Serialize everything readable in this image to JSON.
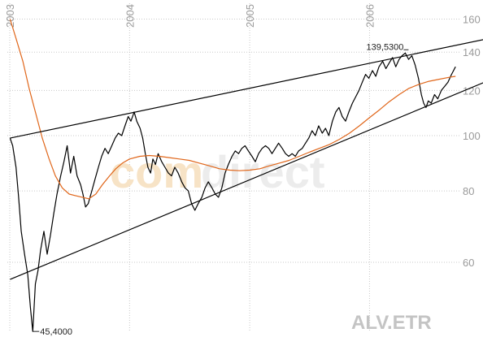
{
  "watermark": {
    "part1": "com",
    "part2": "direct"
  },
  "chart_data": {
    "type": "line",
    "symbol": "ALV.ETR",
    "y_scale": "log",
    "ylim": [
      45,
      160
    ],
    "yticks": [
      60,
      80,
      100,
      120,
      140,
      160
    ],
    "xlim": [
      "2003-03-01",
      "2006-12-31"
    ],
    "x_tick_labels": [
      "2003",
      "2004",
      "2005",
      "2006"
    ],
    "x_tick_dates": [
      "2003-01-01",
      "2004-01-01",
      "2005-01-01",
      "2006-01-01"
    ],
    "grid": true,
    "colors": {
      "price": "#000000",
      "moving_average": "#e0661a",
      "trendline": "#000000"
    },
    "annotations": [
      {
        "label": "139,5300",
        "date": "2006-04-20",
        "value": 139.53
      },
      {
        "label": "45,4000",
        "date": "2003-03-12",
        "value": 45.4
      }
    ],
    "series": [
      {
        "type": "line",
        "color": "#000000",
        "points": [
          [
            "2003-01-02",
            99
          ],
          [
            "2003-01-10",
            96
          ],
          [
            "2003-01-20",
            88
          ],
          [
            "2003-01-28",
            78
          ],
          [
            "2003-02-05",
            68
          ],
          [
            "2003-02-15",
            62
          ],
          [
            "2003-02-25",
            57
          ],
          [
            "2003-03-05",
            50
          ],
          [
            "2003-03-12",
            45.4
          ],
          [
            "2003-03-20",
            55
          ],
          [
            "2003-03-28",
            58
          ],
          [
            "2003-04-05",
            63
          ],
          [
            "2003-04-15",
            68
          ],
          [
            "2003-04-25",
            62
          ],
          [
            "2003-05-05",
            67
          ],
          [
            "2003-05-15",
            73
          ],
          [
            "2003-05-25",
            79
          ],
          [
            "2003-06-05",
            85
          ],
          [
            "2003-06-15",
            90
          ],
          [
            "2003-06-25",
            96
          ],
          [
            "2003-07-05",
            86
          ],
          [
            "2003-07-15",
            92
          ],
          [
            "2003-07-25",
            85
          ],
          [
            "2003-08-05",
            82
          ],
          [
            "2003-08-12",
            79
          ],
          [
            "2003-08-20",
            75
          ],
          [
            "2003-08-28",
            76
          ],
          [
            "2003-09-08",
            80
          ],
          [
            "2003-09-18",
            84
          ],
          [
            "2003-09-28",
            88
          ],
          [
            "2003-10-08",
            92
          ],
          [
            "2003-10-18",
            95
          ],
          [
            "2003-10-28",
            93
          ],
          [
            "2003-11-08",
            96
          ],
          [
            "2003-11-18",
            99
          ],
          [
            "2003-11-28",
            101
          ],
          [
            "2003-12-08",
            100
          ],
          [
            "2003-12-18",
            104
          ],
          [
            "2003-12-28",
            108
          ],
          [
            "2004-01-05",
            106
          ],
          [
            "2004-01-15",
            110
          ],
          [
            "2004-01-23",
            106
          ],
          [
            "2004-02-02",
            103
          ],
          [
            "2004-02-10",
            99
          ],
          [
            "2004-02-18",
            93
          ],
          [
            "2004-02-26",
            88
          ],
          [
            "2004-03-05",
            86
          ],
          [
            "2004-03-12",
            91
          ],
          [
            "2004-03-20",
            89
          ],
          [
            "2004-03-28",
            93
          ],
          [
            "2004-04-08",
            90
          ],
          [
            "2004-04-18",
            88
          ],
          [
            "2004-04-28",
            86
          ],
          [
            "2004-05-08",
            85
          ],
          [
            "2004-05-18",
            88
          ],
          [
            "2004-05-28",
            86
          ],
          [
            "2004-06-08",
            83
          ],
          [
            "2004-06-18",
            81
          ],
          [
            "2004-06-28",
            80
          ],
          [
            "2004-07-08",
            76
          ],
          [
            "2004-07-18",
            74
          ],
          [
            "2004-07-28",
            76
          ],
          [
            "2004-08-08",
            78
          ],
          [
            "2004-08-18",
            81
          ],
          [
            "2004-08-28",
            83
          ],
          [
            "2004-09-08",
            81
          ],
          [
            "2004-09-18",
            79
          ],
          [
            "2004-09-28",
            78
          ],
          [
            "2004-10-08",
            81
          ],
          [
            "2004-10-18",
            86
          ],
          [
            "2004-10-28",
            89
          ],
          [
            "2004-11-08",
            92
          ],
          [
            "2004-11-18",
            94
          ],
          [
            "2004-11-28",
            93
          ],
          [
            "2004-12-08",
            95
          ],
          [
            "2004-12-18",
            96
          ],
          [
            "2004-12-28",
            94
          ],
          [
            "2005-01-08",
            92
          ],
          [
            "2005-01-18",
            90
          ],
          [
            "2005-01-28",
            93
          ],
          [
            "2005-02-08",
            95
          ],
          [
            "2005-02-18",
            96
          ],
          [
            "2005-02-28",
            95
          ],
          [
            "2005-03-10",
            93
          ],
          [
            "2005-03-20",
            95
          ],
          [
            "2005-03-30",
            97
          ],
          [
            "2005-04-10",
            95
          ],
          [
            "2005-04-20",
            93
          ],
          [
            "2005-04-30",
            92
          ],
          [
            "2005-05-10",
            93
          ],
          [
            "2005-05-20",
            92
          ],
          [
            "2005-05-30",
            94
          ],
          [
            "2005-06-10",
            95
          ],
          [
            "2005-06-20",
            97
          ],
          [
            "2005-06-30",
            99
          ],
          [
            "2005-07-10",
            102
          ],
          [
            "2005-07-20",
            100
          ],
          [
            "2005-07-30",
            104
          ],
          [
            "2005-08-10",
            101
          ],
          [
            "2005-08-20",
            103
          ],
          [
            "2005-08-30",
            100
          ],
          [
            "2005-09-10",
            106
          ],
          [
            "2005-09-20",
            110
          ],
          [
            "2005-09-30",
            112
          ],
          [
            "2005-10-10",
            108
          ],
          [
            "2005-10-20",
            106
          ],
          [
            "2005-10-30",
            110
          ],
          [
            "2005-11-10",
            114
          ],
          [
            "2005-11-20",
            117
          ],
          [
            "2005-11-30",
            120
          ],
          [
            "2005-12-10",
            124
          ],
          [
            "2005-12-20",
            128
          ],
          [
            "2005-12-30",
            126
          ],
          [
            "2006-01-10",
            130
          ],
          [
            "2006-01-20",
            127
          ],
          [
            "2006-01-30",
            132
          ],
          [
            "2006-02-10",
            135
          ],
          [
            "2006-02-20",
            131
          ],
          [
            "2006-03-02",
            134
          ],
          [
            "2006-03-12",
            137
          ],
          [
            "2006-03-22",
            132
          ],
          [
            "2006-04-01",
            136
          ],
          [
            "2006-04-10",
            138
          ],
          [
            "2006-04-20",
            139.5
          ],
          [
            "2006-04-30",
            136
          ],
          [
            "2006-05-10",
            138
          ],
          [
            "2006-05-20",
            133
          ],
          [
            "2006-05-30",
            126
          ],
          [
            "2006-06-08",
            118
          ],
          [
            "2006-06-15",
            114
          ],
          [
            "2006-06-22",
            112
          ],
          [
            "2006-06-29",
            115
          ],
          [
            "2006-07-08",
            114
          ],
          [
            "2006-07-18",
            118
          ],
          [
            "2006-07-28",
            116
          ],
          [
            "2006-08-08",
            120
          ],
          [
            "2006-08-18",
            122
          ],
          [
            "2006-08-28",
            124
          ],
          [
            "2006-09-08",
            128
          ],
          [
            "2006-09-14",
            130
          ],
          [
            "2006-09-20",
            132
          ]
        ]
      },
      {
        "type": "line",
        "color": "#e0661a",
        "points": [
          [
            "2003-01-02",
            160
          ],
          [
            "2003-01-20",
            148
          ],
          [
            "2003-02-10",
            135
          ],
          [
            "2003-03-01",
            121
          ],
          [
            "2003-03-20",
            110
          ],
          [
            "2003-04-10",
            99
          ],
          [
            "2003-05-01",
            91
          ],
          [
            "2003-05-20",
            85
          ],
          [
            "2003-06-10",
            81
          ],
          [
            "2003-07-01",
            79
          ],
          [
            "2003-07-20",
            78.5
          ],
          [
            "2003-08-10",
            78
          ],
          [
            "2003-08-30",
            77.5
          ],
          [
            "2003-09-20",
            79
          ],
          [
            "2003-10-10",
            82
          ],
          [
            "2003-11-01",
            85
          ],
          [
            "2003-11-20",
            87.5
          ],
          [
            "2003-12-10",
            89.5
          ],
          [
            "2004-01-01",
            91
          ],
          [
            "2004-02-01",
            92
          ],
          [
            "2004-03-01",
            92.3
          ],
          [
            "2004-04-01",
            92
          ],
          [
            "2004-05-01",
            91.5
          ],
          [
            "2004-06-01",
            91
          ],
          [
            "2004-07-01",
            90.5
          ],
          [
            "2004-08-01",
            89.5
          ],
          [
            "2004-09-01",
            88.5
          ],
          [
            "2004-10-01",
            87.5
          ],
          [
            "2004-11-01",
            87
          ],
          [
            "2004-12-01",
            86.8
          ],
          [
            "2005-01-01",
            87
          ],
          [
            "2005-02-01",
            87.5
          ],
          [
            "2005-03-01",
            88.5
          ],
          [
            "2005-04-01",
            89.5
          ],
          [
            "2005-05-01",
            90.5
          ],
          [
            "2005-06-01",
            92
          ],
          [
            "2005-07-01",
            93.5
          ],
          [
            "2005-08-01",
            95
          ],
          [
            "2005-09-01",
            96.5
          ],
          [
            "2005-10-01",
            98.5
          ],
          [
            "2005-11-01",
            101
          ],
          [
            "2005-12-01",
            104
          ],
          [
            "2006-01-01",
            107.5
          ],
          [
            "2006-02-01",
            111
          ],
          [
            "2006-03-01",
            114.5
          ],
          [
            "2006-04-01",
            118
          ],
          [
            "2006-05-01",
            121
          ],
          [
            "2006-06-01",
            123
          ],
          [
            "2006-07-01",
            124.5
          ],
          [
            "2006-08-01",
            125.5
          ],
          [
            "2006-09-01",
            126.5
          ],
          [
            "2006-09-20",
            127
          ]
        ]
      },
      {
        "type": "line",
        "color": "#000000",
        "points": [
          [
            "2003-01-02",
            99
          ],
          [
            "2006-12-31",
            148
          ]
        ]
      },
      {
        "type": "line",
        "color": "#000000",
        "points": [
          [
            "2003-01-02",
            56
          ],
          [
            "2006-12-31",
            125
          ]
        ]
      }
    ]
  }
}
